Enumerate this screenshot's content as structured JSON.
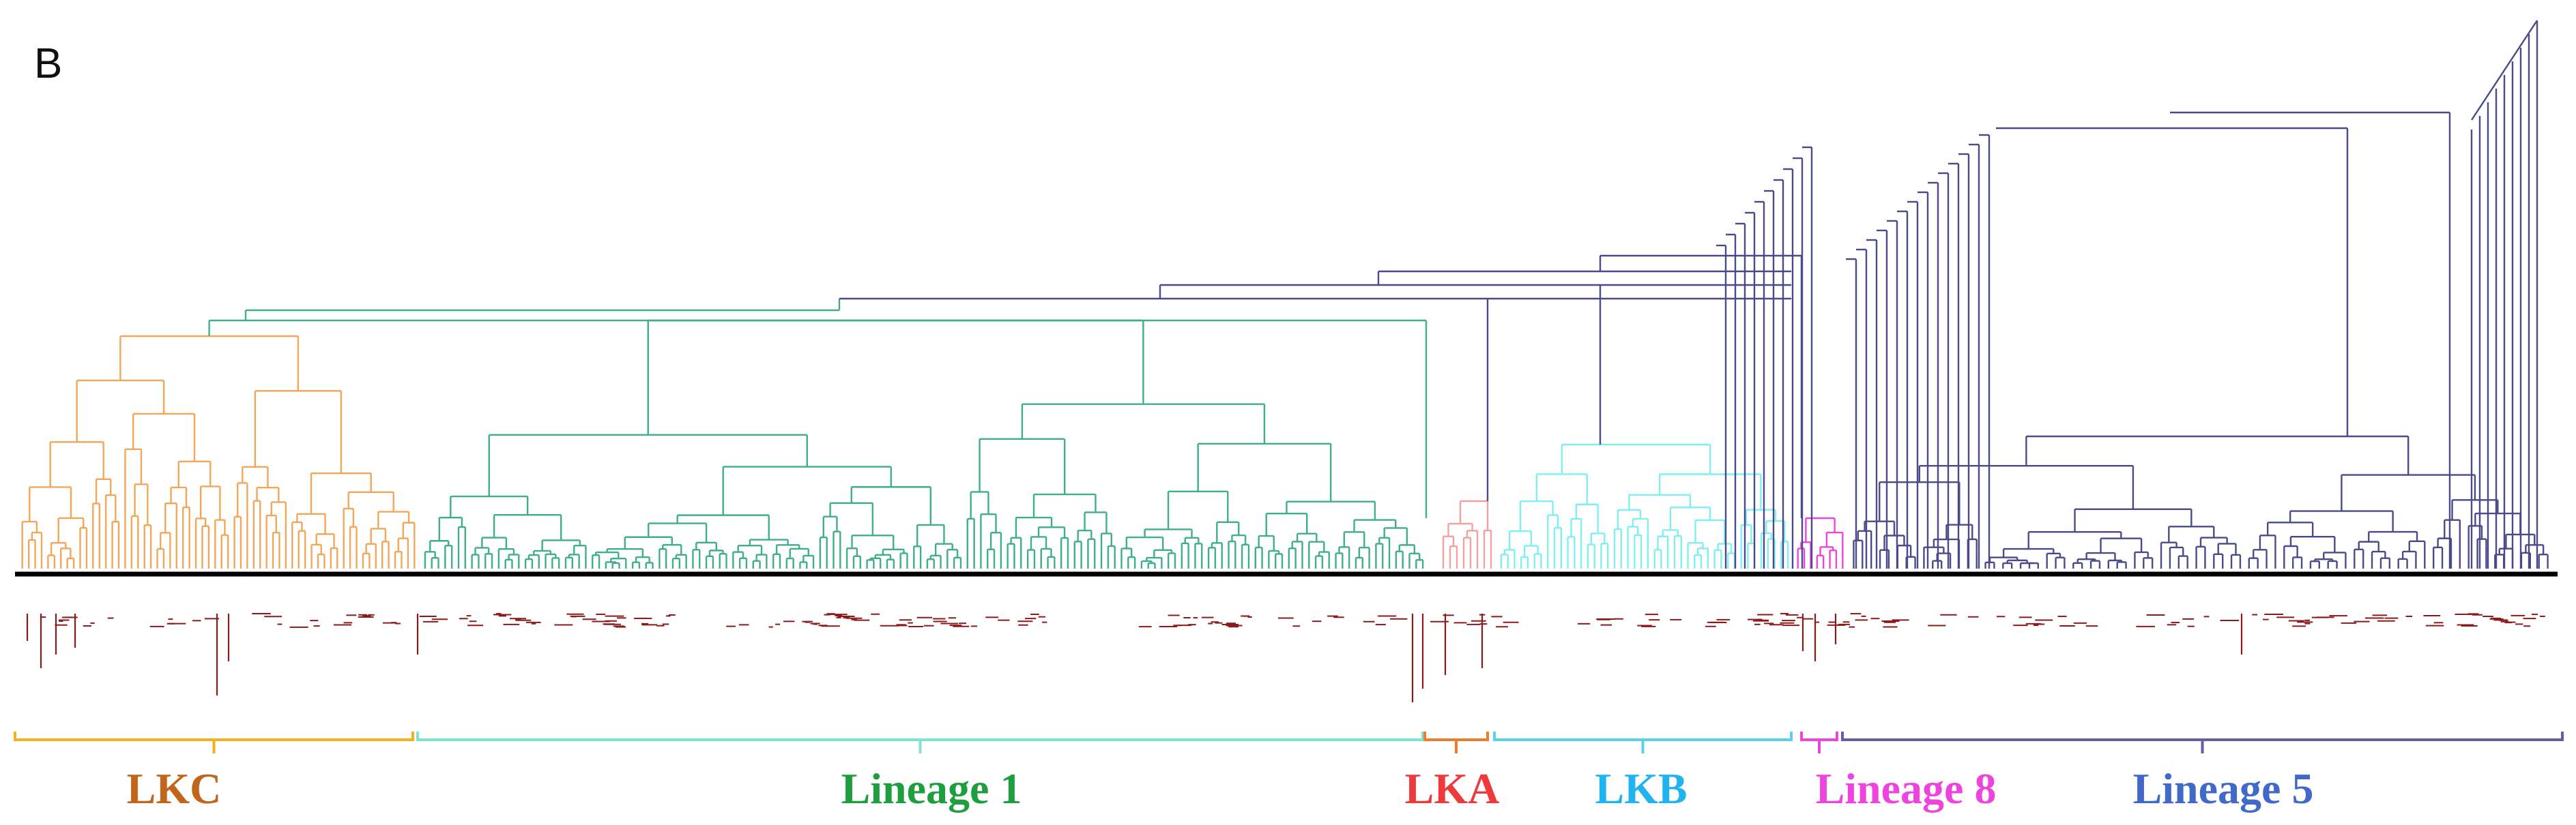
{
  "figure": {
    "panel_letter": "B",
    "baseline_color": "#000000",
    "tip_label_color": "#8b1a1a"
  },
  "clades": [
    {
      "key": "lkc",
      "label": "LKC",
      "color": "#f2a65a",
      "label_color": "#c0651a",
      "bracket_color": "#f2b21c"
    },
    {
      "key": "lineage1",
      "label": "Lineage 1",
      "color": "#3fae8c",
      "label_color": "#1e9e3e",
      "bracket_color": "#7fe3d3"
    },
    {
      "key": "lka",
      "label": "LKA",
      "color": "#f4a0a0",
      "label_color": "#ee3a3a",
      "bracket_color": "#ef7b2c"
    },
    {
      "key": "lkb",
      "label": "LKB",
      "color": "#7ff0f0",
      "label_color": "#1fb4f0",
      "bracket_color": "#57d2e8"
    },
    {
      "key": "lineage8",
      "label": "Lineage 8",
      "color": "#ee44dd",
      "label_color": "#ee44dd",
      "bracket_color": "#ee44dd"
    },
    {
      "key": "lineage5",
      "label": "Lineage 5",
      "color": "#4a4a8a",
      "label_color": "#4169c8",
      "bracket_color": "#6b5aa6"
    }
  ]
}
